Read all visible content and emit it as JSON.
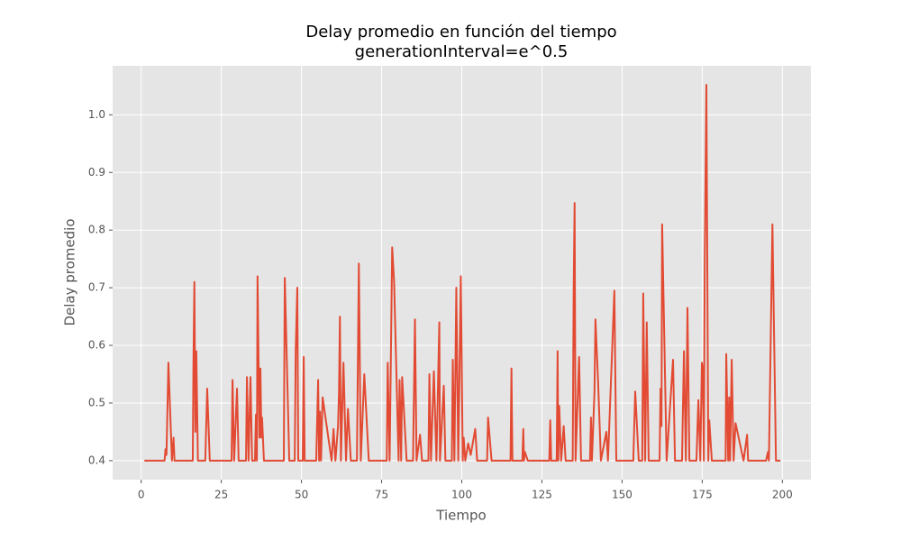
{
  "chart_data": {
    "type": "line",
    "title": "Delay promedio en función del tiempo",
    "subtitle": "generationInterval=e^0.5",
    "x_label": "Tiempo",
    "y_label": "Delay promedio",
    "color": "#E24A33",
    "grid": true,
    "xlim": [
      -8.9,
      208.9
    ],
    "ylim": [
      0.367,
      1.085
    ],
    "xticks": [
      0,
      25,
      50,
      75,
      100,
      125,
      150,
      175,
      200
    ],
    "yticks": [
      0.4,
      0.5,
      0.6,
      0.7,
      0.8,
      0.9,
      {
        "value": 1,
        "label": "1.0"
      }
    ],
    "x": [
      1,
      7.3,
      7.6,
      7.9,
      8.5,
      9.6,
      10.1,
      10.4,
      16.1,
      16.3,
      16.6,
      16.9,
      17.2,
      17.7,
      20,
      20.6,
      21.4,
      28.2,
      28.5,
      29,
      29.9,
      30.4,
      32.7,
      33,
      33.5,
      34.1,
      34.6,
      35.5,
      35.8,
      36.1,
      36.3,
      36.9,
      37.2,
      37.5,
      37.7,
      38.3,
      44.5,
      44.8,
      46.2,
      47.9,
      48.2,
      48.7,
      49,
      50.4,
      50.7,
      51,
      54.6,
      55.2,
      55.5,
      55.8,
      56.1,
      56.6,
      59.4,
      60,
      60.6,
      61.4,
      61.7,
      62,
      62.3,
      63.1,
      63.9,
      64.5,
      65.4,
      67.3,
      67.9,
      68.5,
      69.6,
      71,
      76.6,
      76.9,
      77.5,
      78.3,
      78.9,
      80.3,
      80.6,
      81.1,
      81.4,
      82.8,
      84.8,
      85.4,
      85.9,
      87,
      87.6,
      89.6,
      89.9,
      90.4,
      91.3,
      92.1,
      93,
      93.2,
      94.4,
      94.9,
      96.9,
      97.2,
      97.7,
      98.3,
      98.9,
      99.7,
      100.3,
      100.6,
      101.1,
      102,
      102.8,
      104.2,
      104.8,
      107.9,
      108.2,
      109.3,
      115.2,
      115.5,
      115.8,
      118.9,
      119.2,
      119.4,
      119.7,
      120.6,
      127.3,
      127.6,
      127.9,
      129.6,
      129.9,
      130.1,
      130.4,
      131,
      131.8,
      132.4,
      134.6,
      134.9,
      135.2,
      135.5,
      136.6,
      137.2,
      140,
      140.3,
      140.6,
      141.4,
      141.7,
      142.5,
      143.4,
      145.1,
      145.6,
      147.6,
      148.2,
      153.5,
      154.1,
      155.2,
      156.3,
      156.6,
      157.2,
      157.7,
      158.3,
      161.7,
      162,
      162.3,
      162.5,
      163.9,
      165.9,
      166.5,
      168.7,
      169.3,
      169.9,
      170.4,
      171,
      173.2,
      173.8,
      174.4,
      174.9,
      175.2,
      175.5,
      175.8,
      176.3,
      176.9,
      177.2,
      178,
      182.3,
      182.5,
      183.1,
      183.4,
      183.7,
      184.2,
      184.8,
      185.4,
      187.9,
      189,
      189.3,
      194.9,
      195.5,
      195.8,
      196.9,
      198,
      199.4
    ],
    "values": [
      0.4,
      0.4,
      0.42,
      0.41,
      0.57,
      0.4,
      0.44,
      0.4,
      0.4,
      0.565,
      0.71,
      0.45,
      0.59,
      0.4,
      0.4,
      0.525,
      0.4,
      0.4,
      0.54,
      0.4,
      0.525,
      0.4,
      0.4,
      0.545,
      0.4,
      0.545,
      0.4,
      0.4,
      0.48,
      0.4,
      0.72,
      0.44,
      0.56,
      0.44,
      0.475,
      0.4,
      0.4,
      0.717,
      0.4,
      0.4,
      0.59,
      0.7,
      0.4,
      0.4,
      0.58,
      0.4,
      0.4,
      0.54,
      0.4,
      0.485,
      0.4,
      0.51,
      0.4,
      0.455,
      0.4,
      0.46,
      0.515,
      0.65,
      0.4,
      0.57,
      0.4,
      0.49,
      0.4,
      0.4,
      0.742,
      0.4,
      0.55,
      0.4,
      0.4,
      0.57,
      0.4,
      0.77,
      0.71,
      0.4,
      0.54,
      0.4,
      0.545,
      0.4,
      0.4,
      0.645,
      0.4,
      0.445,
      0.4,
      0.4,
      0.55,
      0.4,
      0.555,
      0.4,
      0.64,
      0.4,
      0.53,
      0.4,
      0.4,
      0.575,
      0.4,
      0.7,
      0.4,
      0.72,
      0.4,
      0.44,
      0.4,
      0.43,
      0.41,
      0.455,
      0.4,
      0.4,
      0.475,
      0.4,
      0.4,
      0.56,
      0.4,
      0.4,
      0.455,
      0.4,
      0.415,
      0.4,
      0.4,
      0.47,
      0.4,
      0.4,
      0.59,
      0.4,
      0.495,
      0.4,
      0.46,
      0.4,
      0.4,
      0.695,
      0.847,
      0.4,
      0.58,
      0.4,
      0.4,
      0.475,
      0.4,
      0.52,
      0.645,
      0.54,
      0.4,
      0.45,
      0.4,
      0.695,
      0.4,
      0.4,
      0.52,
      0.4,
      0.4,
      0.69,
      0.4,
      0.64,
      0.4,
      0.4,
      0.525,
      0.46,
      0.81,
      0.4,
      0.575,
      0.4,
      0.4,
      0.59,
      0.4,
      0.665,
      0.4,
      0.4,
      0.505,
      0.4,
      0.57,
      0.56,
      0.4,
      0.75,
      1.052,
      0.4,
      0.47,
      0.4,
      0.4,
      0.585,
      0.4,
      0.51,
      0.4,
      0.575,
      0.4,
      0.465,
      0.4,
      0.445,
      0.4,
      0.4,
      0.415,
      0.4,
      0.81,
      0.4,
      0.4
    ]
  }
}
